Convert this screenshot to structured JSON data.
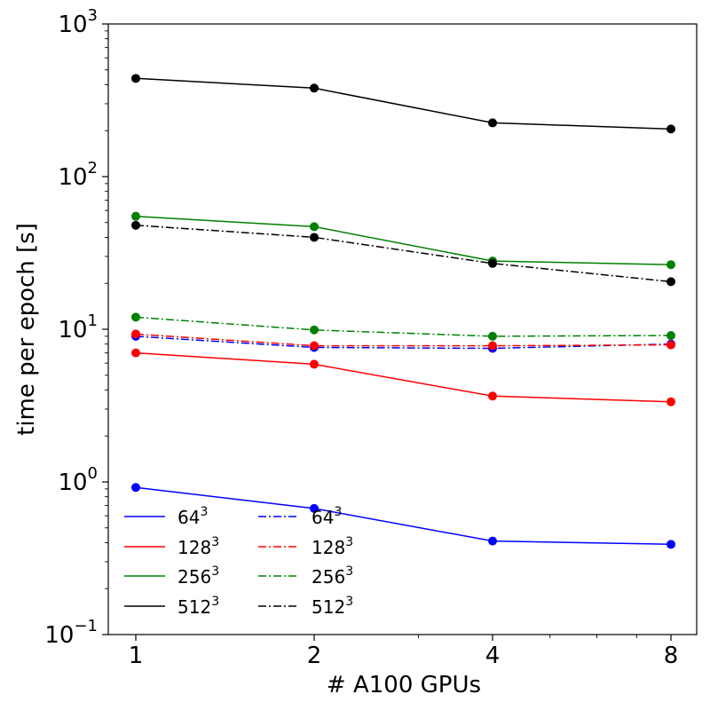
{
  "chart_data": {
    "type": "line",
    "xlabel": "# A100 GPUs",
    "ylabel": "time per epoch [s]",
    "x": [
      1,
      2,
      4,
      8
    ],
    "xscale": "log2",
    "yscale": "log",
    "ylim": [
      0.1,
      1000
    ],
    "xtick_labels": [
      "1",
      "2",
      "4",
      "8"
    ],
    "ytick_labels": [
      {
        "base": "10",
        "exp": "−1",
        "value": 0.1
      },
      {
        "base": "10",
        "exp": "0",
        "value": 1
      },
      {
        "base": "10",
        "exp": "1",
        "value": 10
      },
      {
        "base": "10",
        "exp": "2",
        "value": 100
      },
      {
        "base": "10",
        "exp": "3",
        "value": 1000
      }
    ],
    "grid": false,
    "legend_position": "lower-left",
    "series": [
      {
        "name": "64",
        "sup": "3",
        "color": "#0000ff",
        "style": "solid",
        "values": [
          0.92,
          0.67,
          0.41,
          0.39
        ]
      },
      {
        "name": "128",
        "sup": "3",
        "color": "#ff0000",
        "style": "solid",
        "values": [
          7.0,
          5.9,
          3.65,
          3.35
        ]
      },
      {
        "name": "256",
        "sup": "3",
        "color": "#008000",
        "style": "solid",
        "values": [
          55,
          47,
          28,
          26.5
        ]
      },
      {
        "name": "512",
        "sup": "3",
        "color": "#000000",
        "style": "solid",
        "values": [
          440,
          380,
          225,
          205
        ]
      },
      {
        "name": "64",
        "sup": "3",
        "color": "#0000ff",
        "style": "dashdot",
        "values": [
          9.0,
          7.6,
          7.5,
          8.0
        ]
      },
      {
        "name": "128",
        "sup": "3",
        "color": "#ff0000",
        "style": "dashdot",
        "values": [
          9.3,
          7.8,
          7.8,
          7.9
        ]
      },
      {
        "name": "256",
        "sup": "3",
        "color": "#008000",
        "style": "dashdot",
        "values": [
          12.0,
          9.9,
          9.0,
          9.1
        ]
      },
      {
        "name": "512",
        "sup": "3",
        "color": "#000000",
        "style": "dashdot",
        "values": [
          48,
          40,
          27,
          20.5
        ]
      }
    ]
  }
}
